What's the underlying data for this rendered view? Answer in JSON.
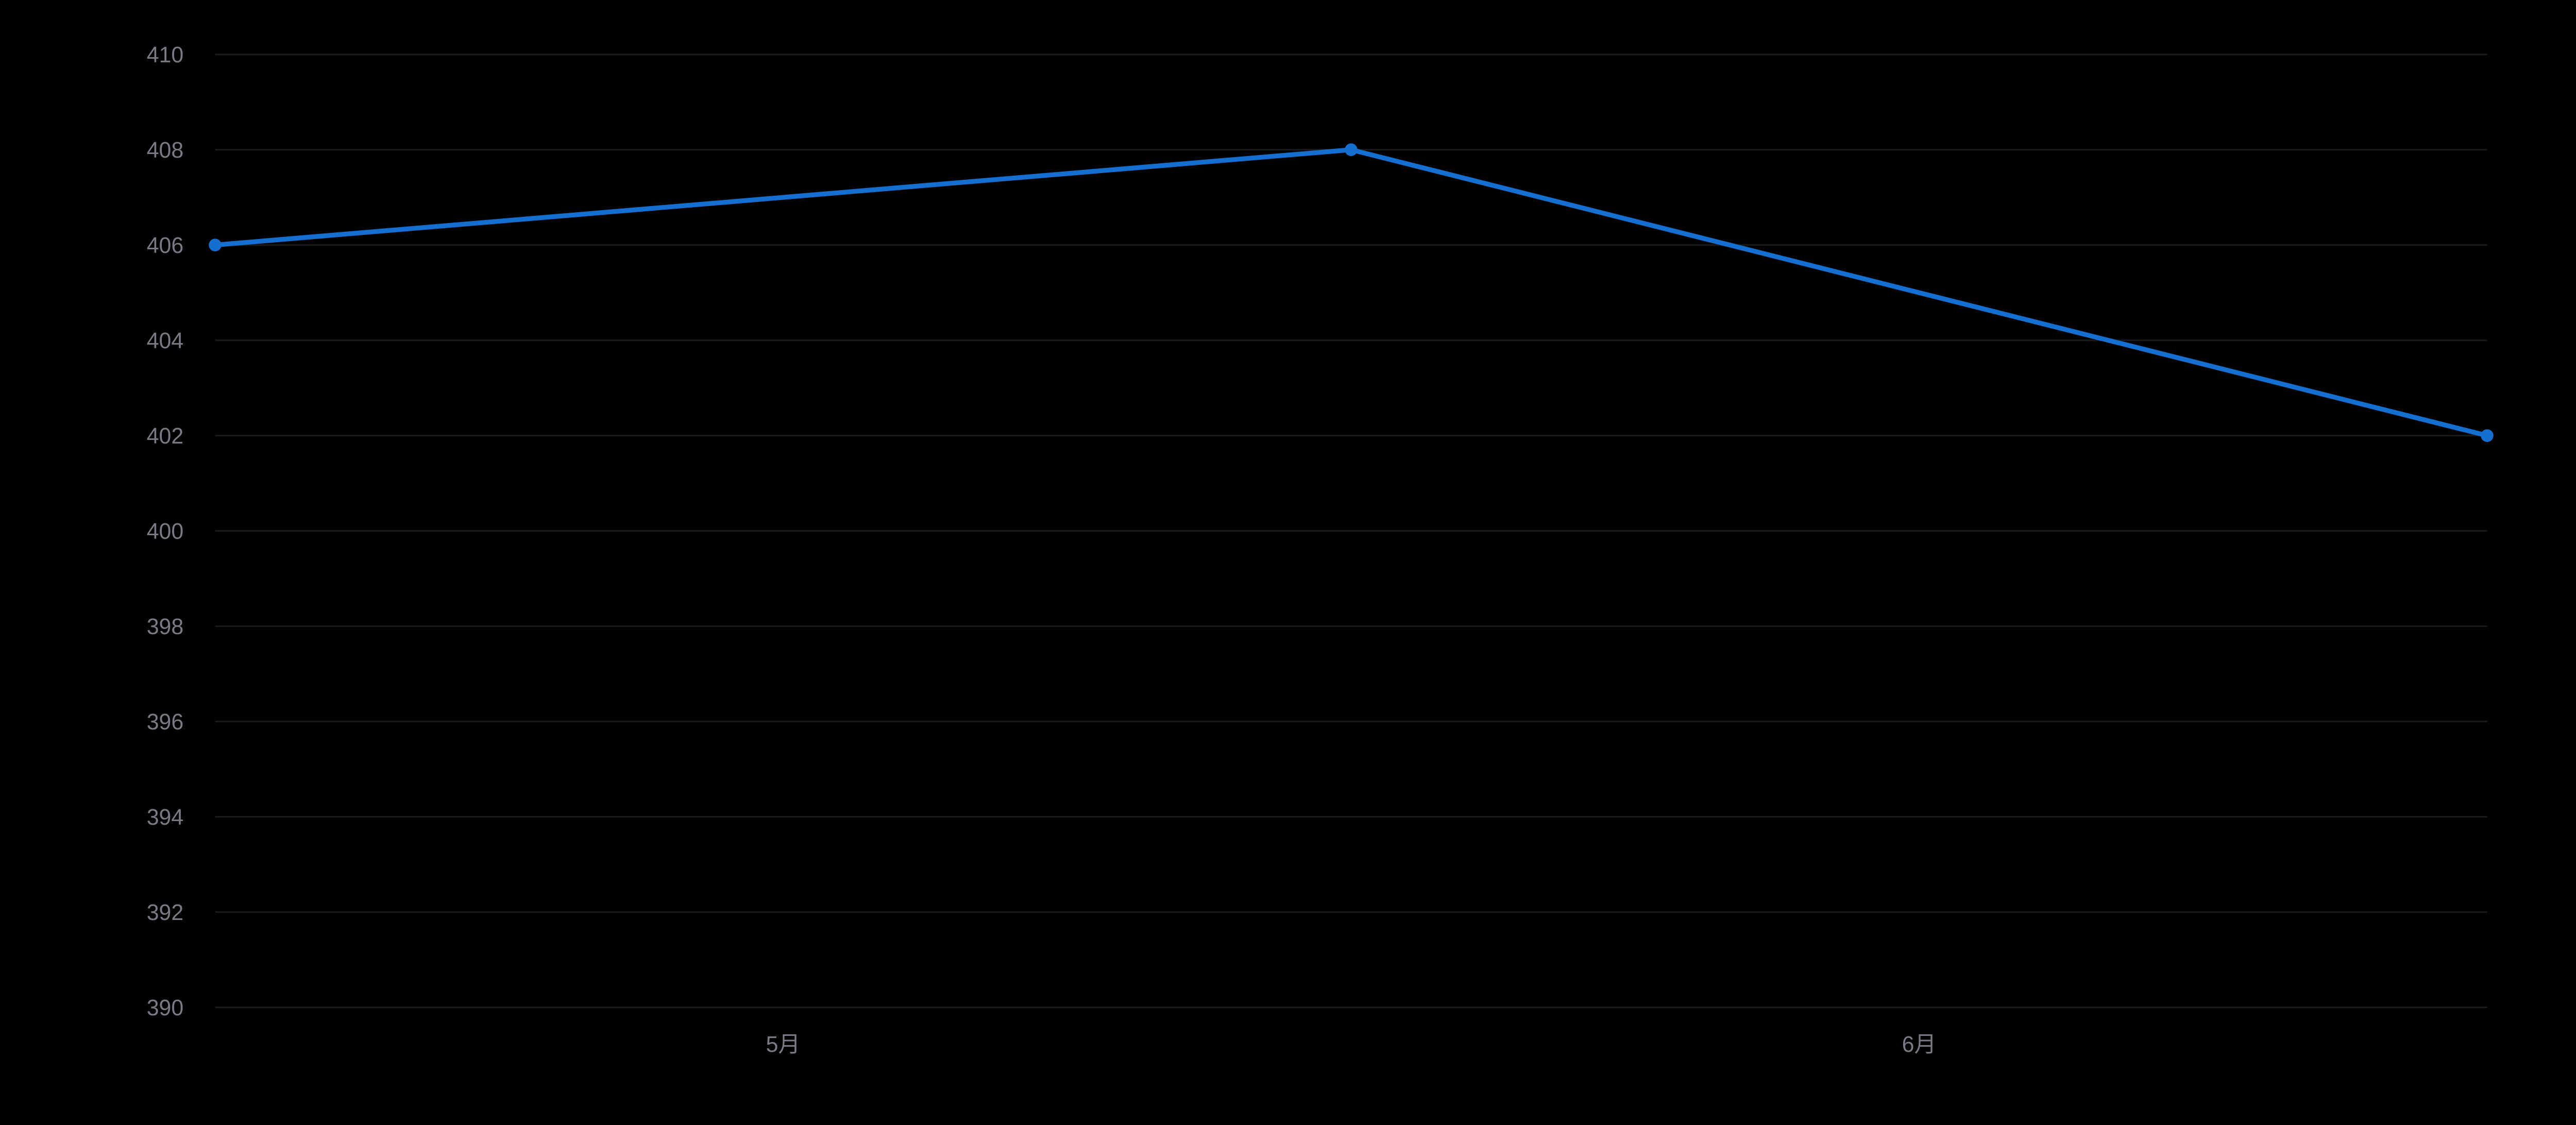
{
  "chart": {
    "type": "line",
    "background_color": "#000000",
    "grid_color": "#1a1a1d",
    "tick_label_color": "#7a7a85",
    "line_color": "#156fd1",
    "marker_color": "#156fd1",
    "marker_radius": 4,
    "line_width": 3,
    "tick_fontsize": 14,
    "xlim": [
      0,
      2
    ],
    "ylim": [
      390,
      410
    ],
    "y_ticks": [
      390,
      392,
      394,
      396,
      398,
      400,
      402,
      404,
      406,
      408,
      410
    ],
    "y_tick_labels": [
      "390",
      "392",
      "394",
      "396",
      "398",
      "400",
      "402",
      "404",
      "406",
      "408",
      "410"
    ],
    "x_tick_positions": [
      0.5,
      1.5
    ],
    "x_tick_labels": [
      "5月",
      "6月"
    ],
    "data": {
      "x": [
        0,
        1,
        2
      ],
      "y": [
        406,
        408,
        402
      ]
    }
  }
}
